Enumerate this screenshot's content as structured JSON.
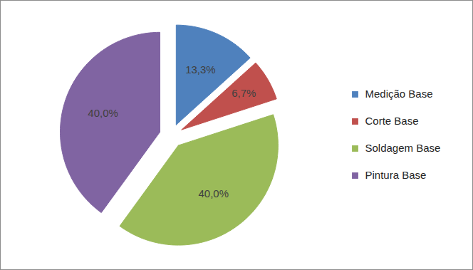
{
  "chart_data": {
    "type": "pie",
    "categories": [
      "Medição Base",
      "Corte Base",
      "Soldagem Base",
      "Pintura Base"
    ],
    "values": [
      13.3,
      6.7,
      40.0,
      40.0
    ],
    "value_labels": [
      "13,3%",
      "6,7%",
      "40,0%",
      "40,0%"
    ],
    "colors": [
      "#4f81bd",
      "#c0504d",
      "#9bbb59",
      "#8064a2"
    ],
    "data_labels": true,
    "legend": "right",
    "tick_labels": false
  }
}
